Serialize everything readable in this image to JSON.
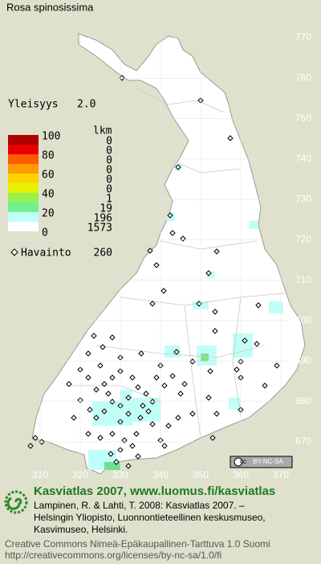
{
  "title": "Rosa spinosissima",
  "frequency": {
    "label": "Yleisyys",
    "value": "2.0"
  },
  "legend": {
    "header": "lkm",
    "scale_labels": [
      "100",
      "80",
      "60",
      "40",
      "20",
      "0"
    ],
    "rows": [
      {
        "count": 0,
        "color": "#b00000"
      },
      {
        "count": 0,
        "color": "#e80000"
      },
      {
        "count": 0,
        "color": "#ff5a00"
      },
      {
        "count": 0,
        "color": "#ff9a00"
      },
      {
        "count": 0,
        "color": "#ffd200"
      },
      {
        "count": 0,
        "color": "#e6f000"
      },
      {
        "count": 1,
        "color": "#9af050"
      },
      {
        "count": 19,
        "color": "#70f090"
      },
      {
        "count": 196,
        "color": "#c0fff8"
      },
      {
        "count": 1573,
        "color": "#ffffff"
      }
    ]
  },
  "observations": {
    "label": "Havainto",
    "count": 260
  },
  "axis": {
    "y": [
      "770",
      "760",
      "750",
      "740",
      "730",
      "720",
      "710",
      "700",
      "690",
      "680",
      "670"
    ],
    "x": [
      "310",
      "320",
      "330",
      "340",
      "350",
      "360",
      "370"
    ]
  },
  "license_badge": "BY-NC-SA",
  "footer": {
    "heading": "Kasviatlas 2007, www.luomus.fi/kasviatlas",
    "citation": [
      "Lampinen, R. & Lahti, T. 2008: Kasviatlas 2007. –",
      "Helsingin Yliopisto, Luonnontieteellinen keskusmuseo,",
      "Kasvimuseo, Helsinki."
    ],
    "license": [
      "Creative Commons Nimeä-Epäkaupallinen-Tarttuva 1.0 Suomi",
      "http://creativecommons.org/licenses/by-nc-sa/1.0/fi"
    ]
  }
}
